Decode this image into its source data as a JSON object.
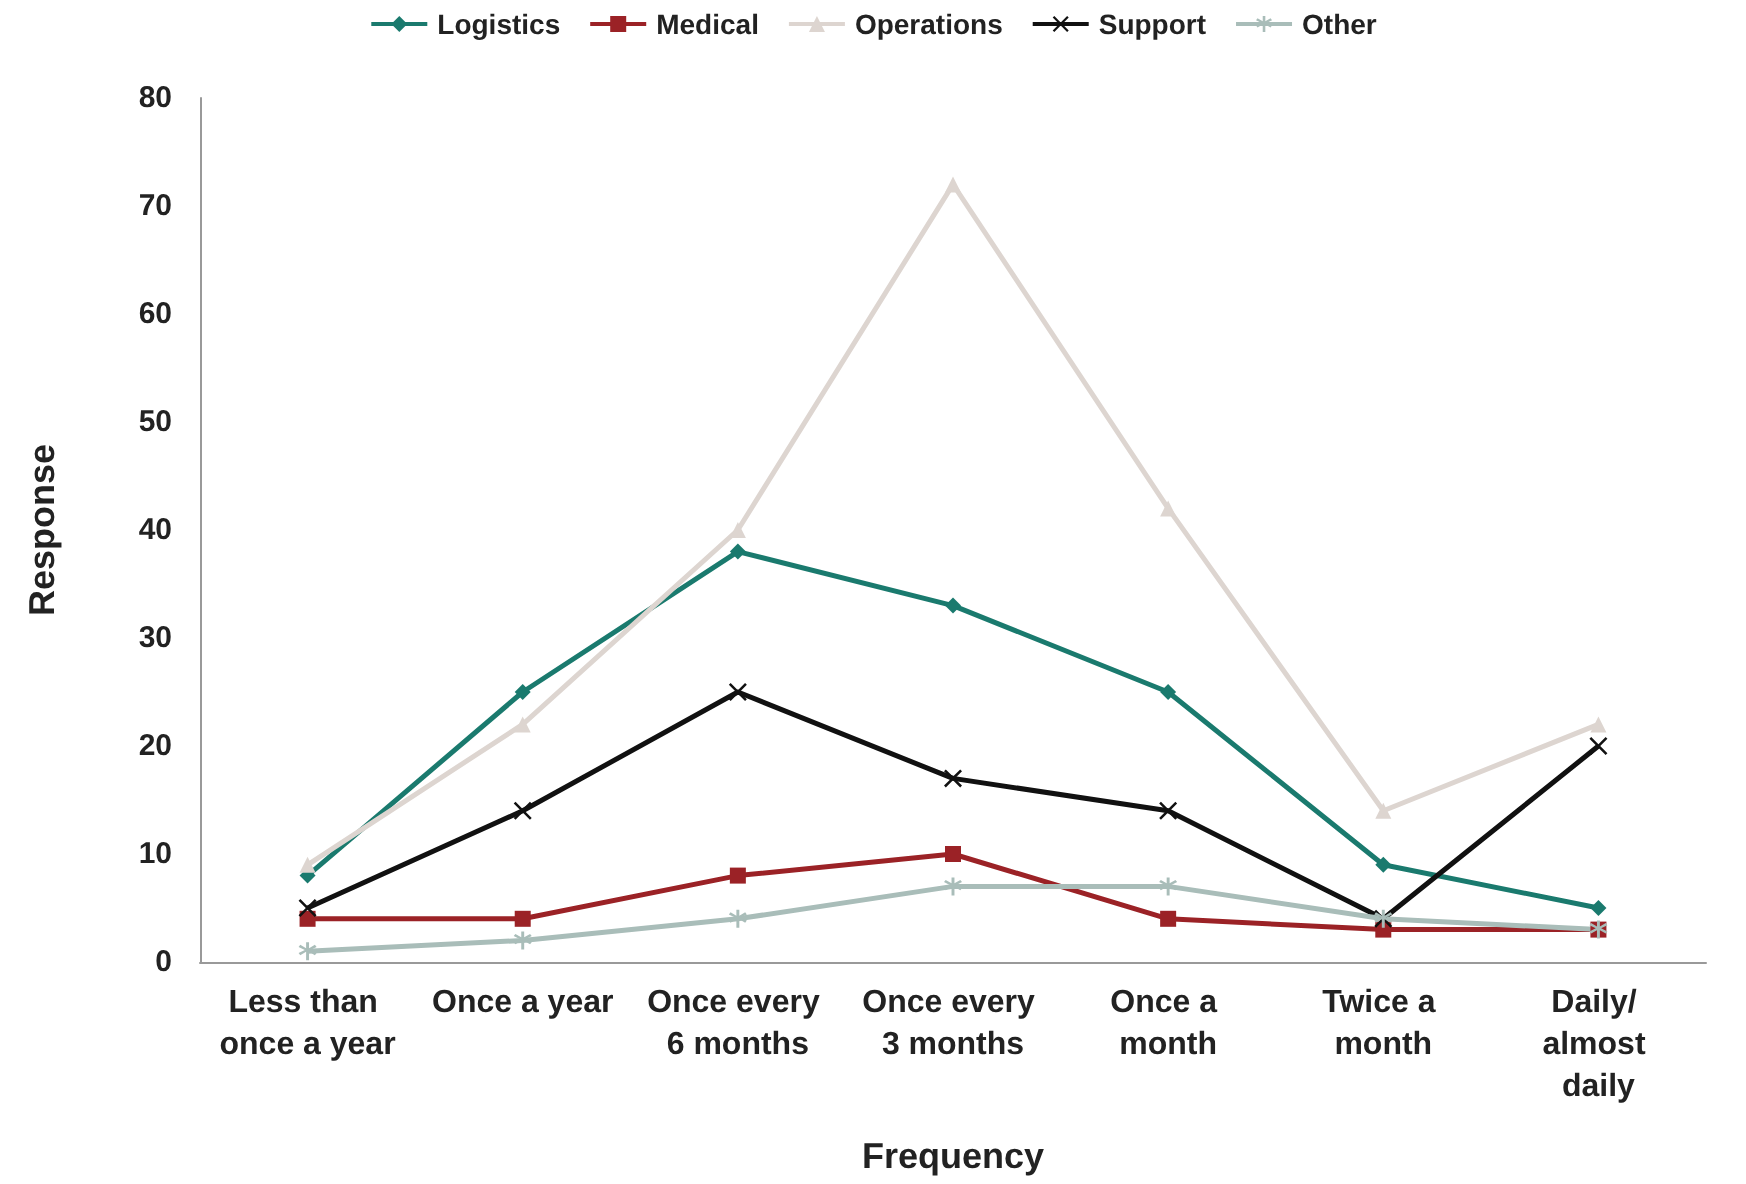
{
  "chart_data": {
    "type": "line",
    "xlabel": "Frequency",
    "ylabel": "Response",
    "categories": [
      "Less than once a year",
      "Once a year",
      "Once every 6 months",
      "Once every 3 months",
      "Once a month",
      "Twice a month",
      "Daily/ almost daily"
    ],
    "series": [
      {
        "name": "Logistics",
        "color": "#1a7a6e",
        "marker": "diamond",
        "values": [
          8,
          25,
          38,
          33,
          25,
          9,
          5
        ]
      },
      {
        "name": "Medical",
        "color": "#9b2226",
        "marker": "square",
        "values": [
          4,
          4,
          8,
          10,
          4,
          3,
          3
        ]
      },
      {
        "name": "Operations",
        "color": "#ddd5d0",
        "marker": "triangle",
        "values": [
          9,
          22,
          40,
          72,
          42,
          14,
          22
        ]
      },
      {
        "name": "Support",
        "color": "#111111",
        "marker": "cross",
        "values": [
          5,
          14,
          25,
          17,
          14,
          4,
          20
        ]
      },
      {
        "name": "Other",
        "color": "#a9bdb9",
        "marker": "star",
        "values": [
          1,
          2,
          4,
          7,
          7,
          4,
          3
        ]
      }
    ],
    "ylim": [
      0,
      80
    ],
    "yticks": [
      0,
      10,
      20,
      30,
      40,
      50,
      60,
      70,
      80
    ],
    "grid": false,
    "legend": "top",
    "line_style": "solid"
  }
}
